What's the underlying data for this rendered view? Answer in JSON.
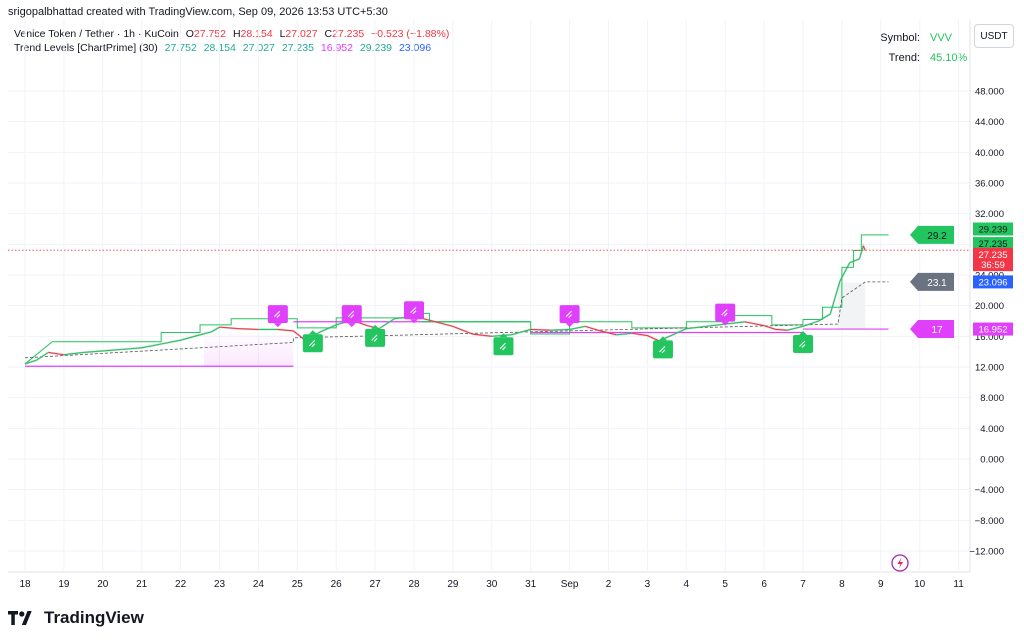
{
  "header": {
    "author_line": "srigopalbhattad created with TradingView.com, Sep 09, 2026 13:53 UTC+5:30"
  },
  "legend": {
    "symbol_line": "Venice Token / Tether · 1h · KuCoin",
    "o_label": "O",
    "o_value": "27.752",
    "h_label": "H",
    "h_value": "28.154",
    "l_label": "L",
    "l_value": "27.027",
    "c_label": "C",
    "c_value": "27.235",
    "change": "−0.523 (−1.88%)",
    "indicator_name": "Trend Levels [ChartPrime] (30)",
    "indicator_values": [
      "27.752",
      "28.154",
      "27.027",
      "27.235",
      "16.952",
      "29.239",
      "23.096"
    ]
  },
  "info_table": {
    "symbol_key": "Symbol:",
    "symbol_value": "VVV",
    "trend_key": "Trend:",
    "trend_value": "45.10%"
  },
  "currency_button": "USDT",
  "footer": {
    "brand": "TradingView"
  },
  "colors": {
    "up": "#22c55e",
    "down": "#f23645",
    "magenta": "#e040fb",
    "grid": "#f0f3fa",
    "axis_text": "#131722",
    "dash": "#555555"
  },
  "chart_data": {
    "type": "line",
    "title": "",
    "x": [
      "18",
      "19",
      "20",
      "21",
      "22",
      "23",
      "24",
      "25",
      "26",
      "27",
      "28",
      "29",
      "30",
      "31",
      "Sep",
      "2",
      "3",
      "4",
      "5",
      "6",
      "7",
      "8",
      "9",
      "10",
      "11"
    ],
    "y_ticks": [
      -12,
      -8,
      -4,
      0,
      4,
      8,
      12,
      16,
      20,
      24,
      28,
      32,
      36,
      40,
      44,
      48
    ],
    "y_tick_labels": [
      "−12.000",
      "−8.000",
      "−4.000",
      "0.000",
      "4.000",
      "8.000",
      "12.000",
      "16.000",
      "20.000",
      "24.000",
      "28.000",
      "32.000",
      "36.000",
      "40.000",
      "44.000",
      "48.000"
    ],
    "ylim": [
      -15,
      51
    ],
    "price": [
      [
        18.0,
        12.4
      ],
      [
        18.3,
        12.9
      ],
      [
        18.6,
        13.9
      ],
      [
        19.0,
        13.6
      ],
      [
        19.5,
        13.9
      ],
      [
        20.0,
        14.1
      ],
      [
        20.5,
        14.3
      ],
      [
        21.0,
        14.5
      ],
      [
        21.5,
        15.0
      ],
      [
        22.0,
        15.5
      ],
      [
        22.5,
        16.2
      ],
      [
        22.8,
        16.6
      ],
      [
        23.0,
        17.2
      ],
      [
        23.5,
        17.0
      ],
      [
        24.0,
        16.9
      ],
      [
        24.5,
        16.9
      ],
      [
        24.9,
        16.7
      ],
      [
        25.2,
        15.5
      ],
      [
        25.6,
        16.6
      ],
      [
        26.0,
        17.5
      ],
      [
        26.4,
        18.1
      ],
      [
        26.8,
        17.4
      ],
      [
        27.1,
        17.0
      ],
      [
        27.5,
        18.3
      ],
      [
        28.0,
        18.6
      ],
      [
        28.4,
        18.1
      ],
      [
        29.0,
        17.3
      ],
      [
        29.5,
        16.3
      ],
      [
        30.0,
        16.0
      ],
      [
        30.5,
        16.2
      ],
      [
        31.0,
        16.9
      ],
      [
        31.5,
        16.8
      ],
      [
        32.0,
        16.9
      ],
      [
        32.4,
        17.3
      ],
      [
        32.8,
        16.7
      ],
      [
        33.2,
        16.2
      ],
      [
        33.6,
        16.4
      ],
      [
        34.0,
        16.1
      ],
      [
        34.3,
        15.4
      ],
      [
        34.7,
        16.3
      ],
      [
        35.0,
        17.0
      ],
      [
        35.5,
        17.3
      ],
      [
        36.0,
        17.6
      ],
      [
        36.5,
        17.9
      ],
      [
        37.0,
        17.4
      ],
      [
        37.3,
        16.9
      ],
      [
        37.6,
        16.8
      ],
      [
        38.0,
        17.3
      ],
      [
        38.4,
        18.0
      ],
      [
        38.7,
        18.9
      ],
      [
        38.95,
        23.2
      ],
      [
        39.2,
        25.6
      ],
      [
        39.45,
        26.1
      ],
      [
        39.55,
        27.8
      ],
      [
        39.6,
        27.2
      ]
    ],
    "upper_band": [
      [
        18.0,
        12.4
      ],
      [
        18.7,
        15.3
      ],
      [
        21.5,
        15.3
      ],
      [
        21.5,
        16.5
      ],
      [
        22.5,
        16.5
      ],
      [
        22.5,
        17.5
      ],
      [
        23.3,
        17.5
      ],
      [
        23.3,
        18.3
      ],
      [
        25.0,
        18.3
      ],
      [
        25.0,
        17.1
      ],
      [
        26.0,
        17.1
      ],
      [
        26.0,
        18.4
      ],
      [
        28.0,
        18.4
      ],
      [
        28.0,
        19.0
      ],
      [
        28.4,
        19.0
      ],
      [
        28.4,
        17.9
      ],
      [
        31.0,
        17.9
      ],
      [
        31.0,
        16.3
      ],
      [
        32.0,
        16.3
      ],
      [
        32.0,
        17.9
      ],
      [
        33.6,
        17.9
      ],
      [
        33.6,
        17.1
      ],
      [
        35.0,
        17.1
      ],
      [
        35.0,
        17.9
      ],
      [
        36.0,
        17.9
      ],
      [
        36.0,
        18.7
      ],
      [
        37.2,
        18.7
      ],
      [
        37.2,
        17.5
      ],
      [
        38.0,
        17.5
      ],
      [
        38.0,
        18.2
      ],
      [
        38.5,
        18.2
      ],
      [
        38.5,
        19.8
      ],
      [
        39.0,
        19.8
      ],
      [
        39.0,
        25.0
      ],
      [
        39.3,
        25.0
      ],
      [
        39.3,
        27.2
      ],
      [
        39.5,
        27.2
      ],
      [
        39.5,
        29.24
      ],
      [
        40.2,
        29.24
      ]
    ],
    "mid_dashed": [
      [
        18.0,
        13.2
      ],
      [
        24.9,
        15.2
      ],
      [
        24.9,
        15.8
      ],
      [
        38.9,
        17.6
      ],
      [
        39.0,
        21.0
      ],
      [
        39.6,
        23.1
      ],
      [
        40.2,
        23.1
      ]
    ],
    "support_segments": [
      [
        18.0,
        24.9,
        12.1
      ],
      [
        24.9,
        28.6,
        17.9
      ],
      [
        31.0,
        38.0,
        16.5
      ],
      [
        38.0,
        40.2,
        16.95
      ]
    ],
    "resist_segments": [
      [
        28.2,
        31.0,
        17.9
      ]
    ],
    "sell_markers": [
      [
        24.5,
        18.9
      ],
      [
        26.4,
        18.9
      ],
      [
        28.0,
        19.4
      ],
      [
        32.0,
        18.9
      ],
      [
        36.0,
        19.1
      ]
    ],
    "buy_markers": [
      [
        25.4,
        15.1
      ],
      [
        27.0,
        15.8
      ],
      [
        30.3,
        14.7
      ],
      [
        34.4,
        14.3
      ],
      [
        38.0,
        15.0
      ]
    ],
    "right_tags": [
      {
        "text": "29.2",
        "y": 29.24,
        "color": "#22c55e"
      },
      {
        "text": "23.1",
        "y": 23.1,
        "color": "#6b7280"
      },
      {
        "text": "17",
        "y": 16.95,
        "color": "#e040fb"
      }
    ],
    "price_axis_tags": [
      {
        "text": "29.239",
        "y": 30.0,
        "color": "#22c55e"
      },
      {
        "text": "27.235",
        "y": 28.1,
        "color": "#22c55e"
      },
      {
        "text": "27.235",
        "y": 26.7,
        "color": "#f23645"
      },
      {
        "text": "36:59",
        "y": 25.35,
        "color": "#f23645"
      },
      {
        "text": "23.096",
        "y": 23.1,
        "color": "#2962ff"
      },
      {
        "text": "16.952",
        "y": 16.95,
        "color": "#e040fb"
      }
    ],
    "current_price": 27.235
  }
}
